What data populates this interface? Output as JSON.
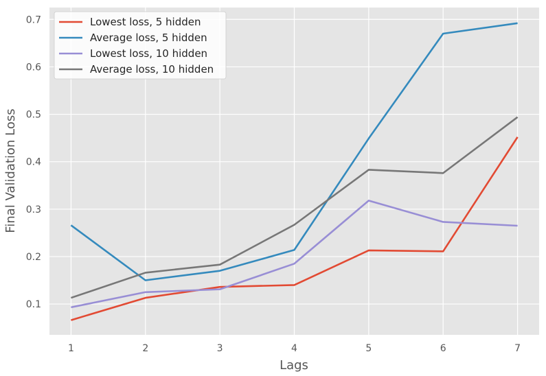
{
  "chart_data": {
    "type": "line",
    "title": "",
    "xlabel": "Lags",
    "ylabel": "Final Validation Loss",
    "x": [
      1,
      2,
      3,
      4,
      5,
      6,
      7
    ],
    "xlim": [
      0.71,
      7.29
    ],
    "ylim": [
      0.035,
      0.725
    ],
    "x_ticks": [
      1,
      2,
      3,
      4,
      5,
      6,
      7
    ],
    "y_ticks": [
      0.1,
      0.2,
      0.3,
      0.4,
      0.5,
      0.6,
      0.7
    ],
    "grid": true,
    "legend_position": "top-left",
    "series": [
      {
        "name": "Lowest loss, 5 hidden",
        "color": "#E24A33",
        "values": [
          0.066,
          0.113,
          0.136,
          0.14,
          0.213,
          0.211,
          0.452
        ]
      },
      {
        "name": "Average loss, 5 hidden",
        "color": "#348ABD",
        "values": [
          0.266,
          0.15,
          0.17,
          0.214,
          0.449,
          0.67,
          0.692
        ]
      },
      {
        "name": "Lowest loss, 10 hidden",
        "color": "#988ED5",
        "values": [
          0.093,
          0.125,
          0.131,
          0.185,
          0.318,
          0.273,
          0.265
        ]
      },
      {
        "name": "Average loss, 10 hidden",
        "color": "#777777",
        "values": [
          0.113,
          0.166,
          0.183,
          0.267,
          0.383,
          0.376,
          0.494
        ]
      }
    ]
  }
}
